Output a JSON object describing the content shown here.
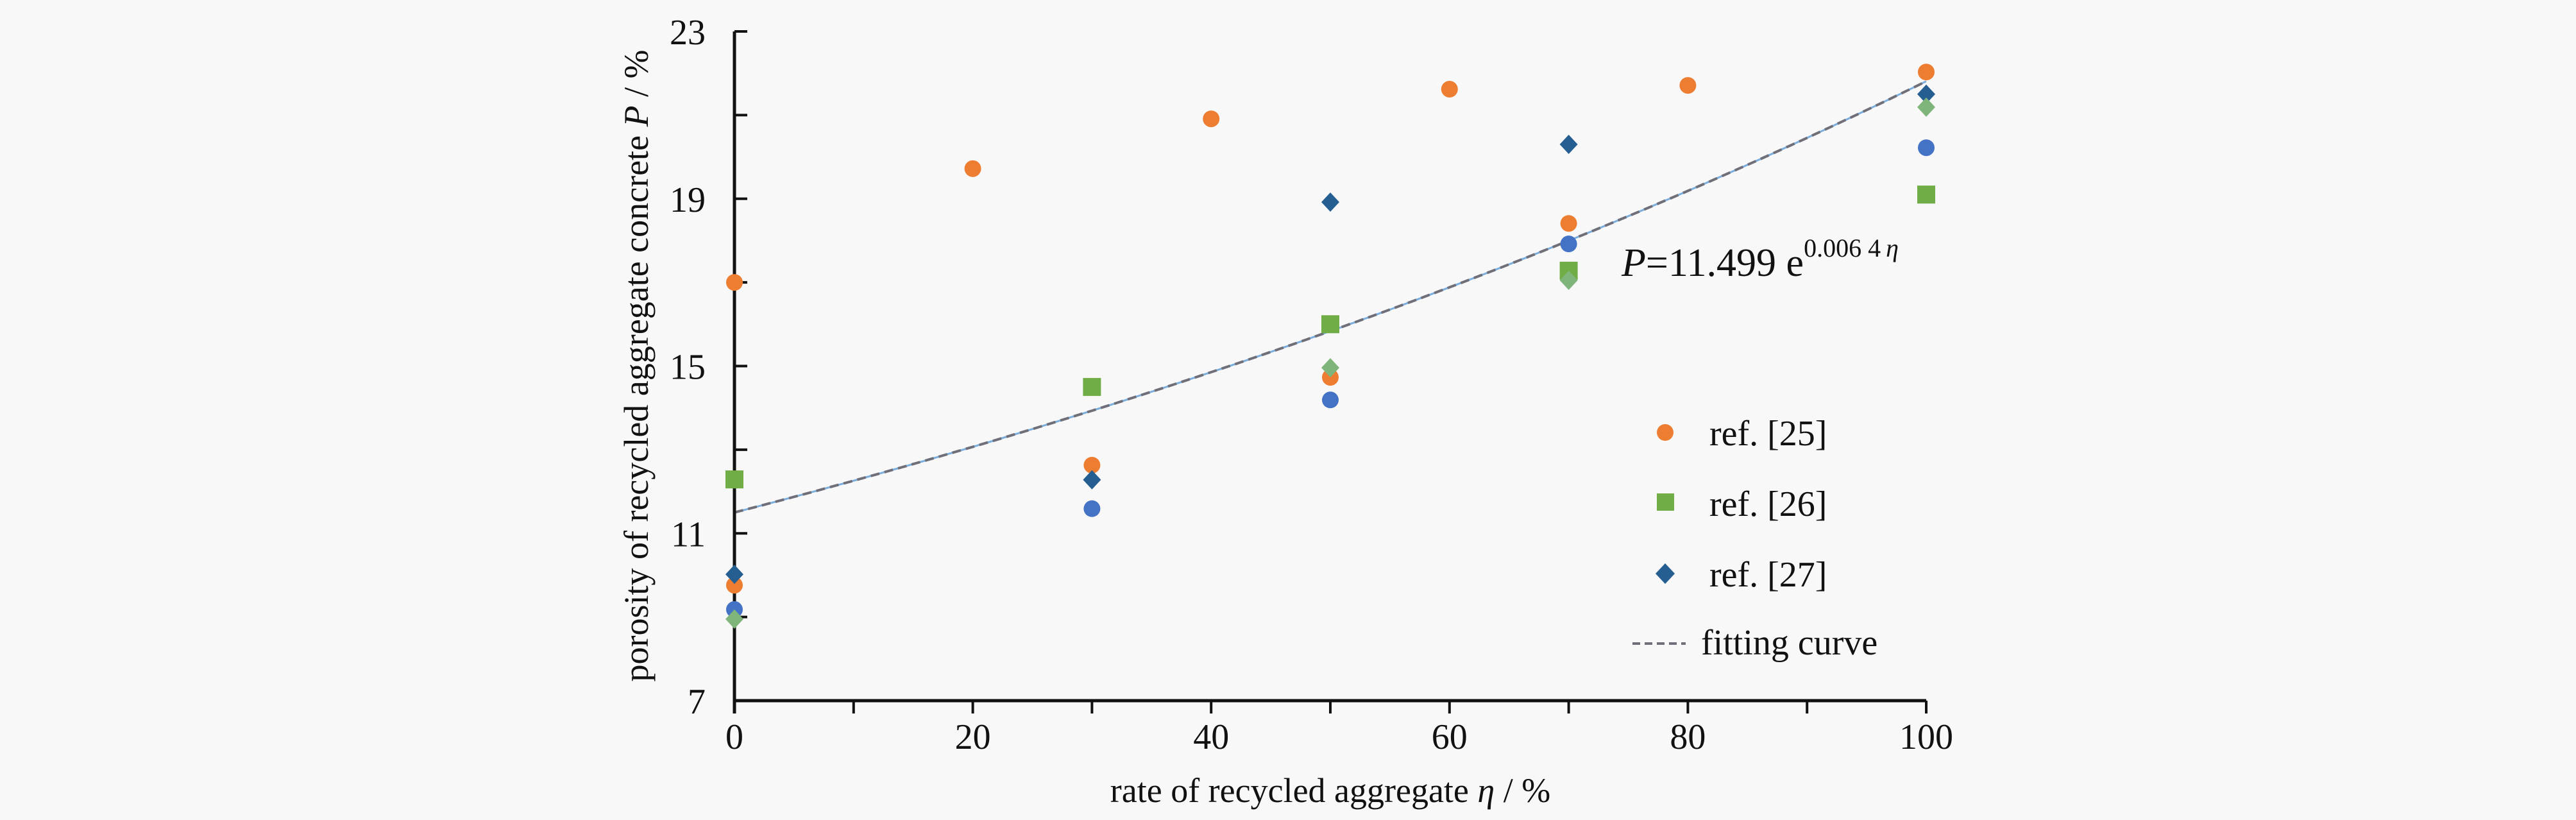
{
  "chart_data": {
    "type": "scatter",
    "title": "",
    "xlabel": "rate of recycled aggregate η / %",
    "xlabel_parts": {
      "text": "rate of recycled aggregate ",
      "var": "η",
      "unit": " / %"
    },
    "ylabel": "porosity of recycled aggregate concrete P / %",
    "ylabel_parts": {
      "text": "porosity of recycled aggregate concrete ",
      "var": "P",
      "unit": " / %"
    },
    "xlim": [
      0,
      100
    ],
    "ylim": [
      7,
      23
    ],
    "x_ticks": [
      0,
      10,
      20,
      30,
      40,
      50,
      60,
      70,
      80,
      90,
      100
    ],
    "x_tick_labels": [
      "0",
      "",
      "20",
      "",
      "40",
      "",
      "60",
      "",
      "80",
      "",
      "100"
    ],
    "y_ticks": [
      7,
      9,
      11,
      13,
      15,
      17,
      19,
      21,
      23
    ],
    "y_tick_labels": [
      "7",
      "",
      "11",
      "",
      "15",
      "",
      "19",
      "",
      "23"
    ],
    "grid": false,
    "legend_position": "right-center",
    "series": [
      {
        "name": "ref. [25]",
        "marker": "circle",
        "color": "#ed7d31",
        "in_legend": true,
        "x": [
          0,
          0,
          20,
          30,
          40,
          50,
          60,
          70,
          80,
          100
        ],
        "y": [
          17.0,
          9.76,
          19.72,
          12.63,
          20.91,
          14.73,
          21.62,
          18.41,
          21.71,
          22.03
        ]
      },
      {
        "name": "ref. [26]",
        "marker": "square",
        "color": "#70ad47",
        "in_legend": true,
        "x": [
          0,
          30,
          50,
          70,
          100
        ],
        "y": [
          12.29,
          14.5,
          16.0,
          17.28,
          19.1
        ]
      },
      {
        "name": "ref. [27]",
        "marker": "diamond",
        "color": "#255e91",
        "in_legend": true,
        "x": [
          0,
          30,
          50,
          70,
          100
        ],
        "y": [
          10.02,
          12.28,
          18.92,
          20.3,
          21.5
        ]
      },
      {
        "name": "",
        "marker": "circle",
        "color": "#4472c4",
        "in_legend": false,
        "x": [
          0,
          30,
          50,
          70,
          100
        ],
        "y": [
          9.18,
          11.59,
          14.19,
          17.92,
          20.22
        ]
      },
      {
        "name": "",
        "marker": "diamond",
        "color": "#7fb57a",
        "in_legend": false,
        "x": [
          0,
          50,
          70,
          100
        ],
        "y": [
          8.95,
          14.96,
          17.05,
          21.19
        ]
      }
    ],
    "fit": {
      "name": "fitting curve",
      "type": "exponential",
      "a": 11.499,
      "b": 0.0064,
      "line_color": "#6f6f7a",
      "under_color": "#5b9bd5",
      "dashed": true
    },
    "annotations": [
      {
        "text": "P=11.499 e^(0.006 4 η)",
        "lhs": "P",
        "eq": "=11.499 e",
        "exponent": "0.006 4",
        "exp_var": "η"
      }
    ],
    "legend": [
      "ref. [25]",
      "ref. [26]",
      "ref. [27]",
      "fitting curve"
    ]
  }
}
